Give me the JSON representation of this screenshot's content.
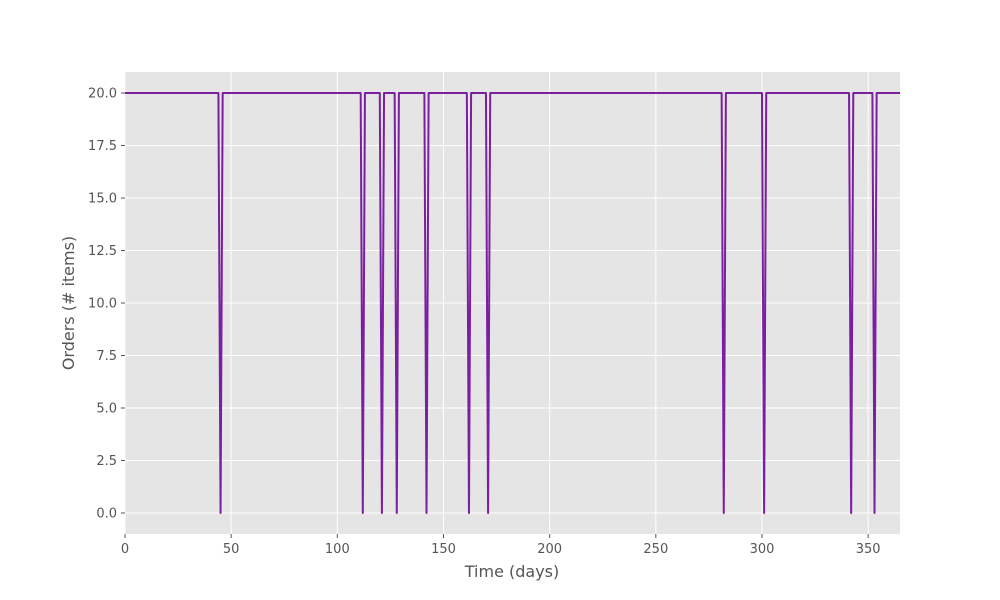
{
  "chart_data": {
    "type": "line",
    "title": "",
    "xlabel": "Time (days)",
    "ylabel": "Orders (# items)",
    "xlim": [
      0,
      365
    ],
    "ylim": [
      -1,
      21
    ],
    "grid": true,
    "background_color": "#e5e5e5",
    "grid_color": "#ffffff",
    "x_ticks": [
      0,
      50,
      100,
      150,
      200,
      250,
      300,
      350
    ],
    "y_ticks": [
      0,
      2.5,
      5,
      7.5,
      10,
      12.5,
      15,
      17.5,
      20
    ],
    "x_tick_labels": [
      "0",
      "50",
      "100",
      "150",
      "200",
      "250",
      "300",
      "350"
    ],
    "y_tick_labels": [
      "0.0",
      "2.5",
      "5.0",
      "7.5",
      "10.0",
      "12.5",
      "15.0",
      "17.5",
      "20.0"
    ],
    "series": [
      {
        "color": "#7b1fa2",
        "x": [
          0,
          44,
          45,
          46,
          111,
          112,
          113,
          120,
          121,
          122,
          127,
          128,
          129,
          141,
          142,
          143,
          161,
          162,
          163,
          170,
          171,
          172,
          281,
          282,
          283,
          300,
          301,
          302,
          341,
          342,
          343,
          352,
          353,
          354,
          365
        ],
        "y": [
          20,
          20,
          0,
          20,
          20,
          0,
          20,
          20,
          0,
          20,
          20,
          0,
          20,
          20,
          0,
          20,
          20,
          0,
          20,
          20,
          0,
          20,
          20,
          0,
          20,
          20,
          0,
          20,
          20,
          0,
          20,
          20,
          0,
          20,
          20
        ]
      }
    ]
  }
}
